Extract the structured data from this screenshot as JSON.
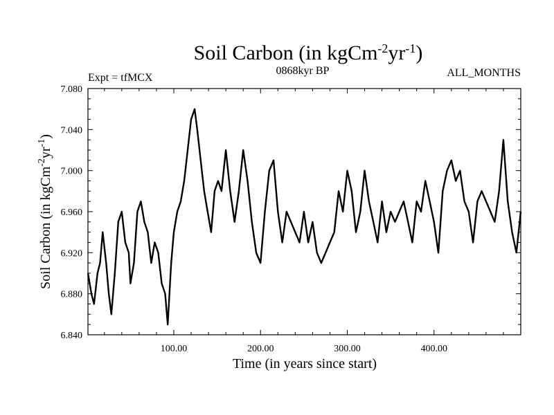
{
  "chart_data": {
    "type": "line",
    "title": "Soil Carbon (in kgCm",
    "title_exp1": "-2",
    "title_mid": "yr",
    "title_exp2": "-1",
    "title_end": ")",
    "subtitle_left": "Expt = tfMCX",
    "subtitle_center": "0868kyr BP",
    "subtitle_right": "ALL_MONTHS",
    "xlabel": "Time (in years since start)",
    "ylabel_main": "Soil Carbon (in kgCm",
    "ylabel_exp1": "-2",
    "ylabel_mid": "yr",
    "ylabel_exp2": "-1",
    "ylabel_end": ")",
    "xlim": [
      1,
      500
    ],
    "ylim": [
      6.84,
      7.08
    ],
    "x_ticks": [
      100,
      200,
      300,
      400
    ],
    "x_tick_labels": [
      "100.00",
      "200.00",
      "300.00",
      "400.00"
    ],
    "y_ticks": [
      6.84,
      6.88,
      6.92,
      6.96,
      7.0,
      7.04,
      7.08
    ],
    "y_tick_labels": [
      "6.840",
      "6.880",
      "6.920",
      "6.960",
      "7.000",
      "7.040",
      "7.080"
    ],
    "series": [
      {
        "name": "Soil Carbon",
        "x": [
          1,
          5,
          8,
          12,
          15,
          18,
          22,
          25,
          28,
          32,
          36,
          40,
          44,
          48,
          50,
          54,
          58,
          62,
          66,
          70,
          74,
          78,
          82,
          86,
          90,
          93,
          97,
          100,
          104,
          108,
          112,
          116,
          120,
          124,
          127,
          131,
          135,
          139,
          143,
          147,
          151,
          155,
          160,
          165,
          170,
          175,
          180,
          185,
          190,
          195,
          200,
          205,
          210,
          215,
          220,
          225,
          230,
          235,
          240,
          245,
          250,
          255,
          260,
          265,
          270,
          275,
          280,
          285,
          290,
          295,
          300,
          305,
          310,
          315,
          320,
          325,
          330,
          335,
          340,
          345,
          350,
          355,
          360,
          365,
          370,
          375,
          380,
          385,
          390,
          395,
          400,
          405,
          410,
          415,
          420,
          425,
          430,
          435,
          440,
          445,
          450,
          455,
          460,
          465,
          470,
          475,
          480,
          485,
          490,
          495,
          500
        ],
        "values": [
          6.9,
          6.88,
          6.87,
          6.9,
          6.91,
          6.94,
          6.91,
          6.88,
          6.86,
          6.9,
          6.95,
          6.96,
          6.93,
          6.92,
          6.89,
          6.91,
          6.96,
          6.97,
          6.95,
          6.94,
          6.91,
          6.93,
          6.92,
          6.89,
          6.88,
          6.85,
          6.91,
          6.94,
          6.96,
          6.97,
          6.99,
          7.02,
          7.05,
          7.06,
          7.04,
          7.01,
          6.98,
          6.96,
          6.94,
          6.98,
          6.99,
          6.98,
          7.02,
          6.98,
          6.95,
          6.98,
          7.02,
          6.99,
          6.95,
          6.92,
          6.91,
          6.96,
          7.0,
          7.01,
          6.96,
          6.93,
          6.96,
          6.95,
          6.94,
          6.93,
          6.96,
          6.93,
          6.95,
          6.92,
          6.91,
          6.92,
          6.93,
          6.94,
          6.98,
          6.96,
          7.0,
          6.98,
          6.94,
          6.96,
          7.0,
          6.97,
          6.95,
          6.93,
          6.97,
          6.94,
          6.96,
          6.95,
          6.96,
          6.97,
          6.95,
          6.93,
          6.97,
          6.96,
          6.99,
          6.97,
          6.95,
          6.92,
          6.98,
          7.0,
          7.01,
          6.99,
          7.0,
          6.97,
          6.96,
          6.93,
          6.97,
          6.98,
          6.97,
          6.96,
          6.95,
          6.98,
          7.03,
          6.97,
          6.94,
          6.92,
          6.96
        ]
      }
    ],
    "colors": {
      "line": "#000000",
      "axes": "#000000",
      "background": "#ffffff"
    }
  }
}
